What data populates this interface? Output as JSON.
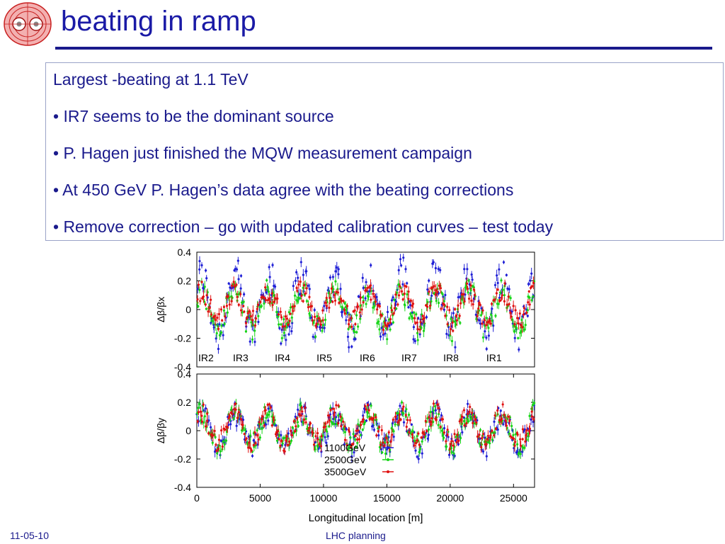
{
  "slide": {
    "title": "beating in ramp",
    "bullets": [
      "Largest -beating at 1.1 TeV",
      "• IR7 seems to be the dominant source",
      "• P. Hagen just finished the MQW measurement campaign",
      "• At 450 GeV P. Hagen’s data agree with the beating corrections",
      "• Remove correction – go with updated calibration curves – test today"
    ],
    "footer_date": "11-05-10",
    "footer_center": "LHC planning"
  },
  "colors": {
    "title": "#1a1aa6",
    "text": "#1a1a8c",
    "rule": "#1a1a8c",
    "series_1100": "#1f1fd6",
    "series_2500": "#17d417",
    "series_3500": "#e01010"
  },
  "chart_data": [
    {
      "type": "scatter",
      "ylabel": "Δβ/βx",
      "ylim": [
        -0.4,
        0.4
      ],
      "xlim": [
        0,
        26659
      ],
      "yticks": [
        "0.4",
        "0.2",
        "0",
        "-0.2",
        "-0.4"
      ],
      "ir_labels": [
        {
          "label": "IR2",
          "x": 0
        },
        {
          "label": "IR3",
          "x": 3300
        },
        {
          "label": "IR4",
          "x": 6600
        },
        {
          "label": "IR5",
          "x": 9900
        },
        {
          "label": "IR6",
          "x": 13300
        },
        {
          "label": "IR7",
          "x": 16600
        },
        {
          "label": "IR8",
          "x": 19900
        },
        {
          "label": "IR1",
          "x": 23300
        }
      ],
      "series": [
        {
          "name": "1100GeV",
          "color": "#1f1fd6",
          "approx_y_range": [
            -0.3,
            0.38
          ]
        },
        {
          "name": "2500GeV",
          "color": "#17d417",
          "approx_y_range": [
            -0.22,
            0.22
          ]
        },
        {
          "name": "3500GeV",
          "color": "#e01010",
          "approx_y_range": [
            -0.15,
            0.2
          ]
        }
      ]
    },
    {
      "type": "scatter",
      "ylabel": "Δβ/βy",
      "xlabel": "Longitudinal location [m]",
      "ylim": [
        -0.4,
        0.4
      ],
      "xlim": [
        0,
        26659
      ],
      "yticks": [
        "0.4",
        "0.2",
        "0",
        "-0.2",
        "-0.4"
      ],
      "xticks": [
        "0",
        "5000",
        "10000",
        "15000",
        "20000",
        "25000"
      ],
      "legend": "bottom-right",
      "series": [
        {
          "name": "1100GeV",
          "color": "#1f1fd6",
          "approx_y_range": [
            -0.2,
            0.2
          ]
        },
        {
          "name": "2500GeV",
          "color": "#17d417",
          "approx_y_range": [
            -0.18,
            0.2
          ]
        },
        {
          "name": "3500GeV",
          "color": "#e01010",
          "approx_y_range": [
            -0.15,
            0.2
          ]
        }
      ]
    }
  ]
}
